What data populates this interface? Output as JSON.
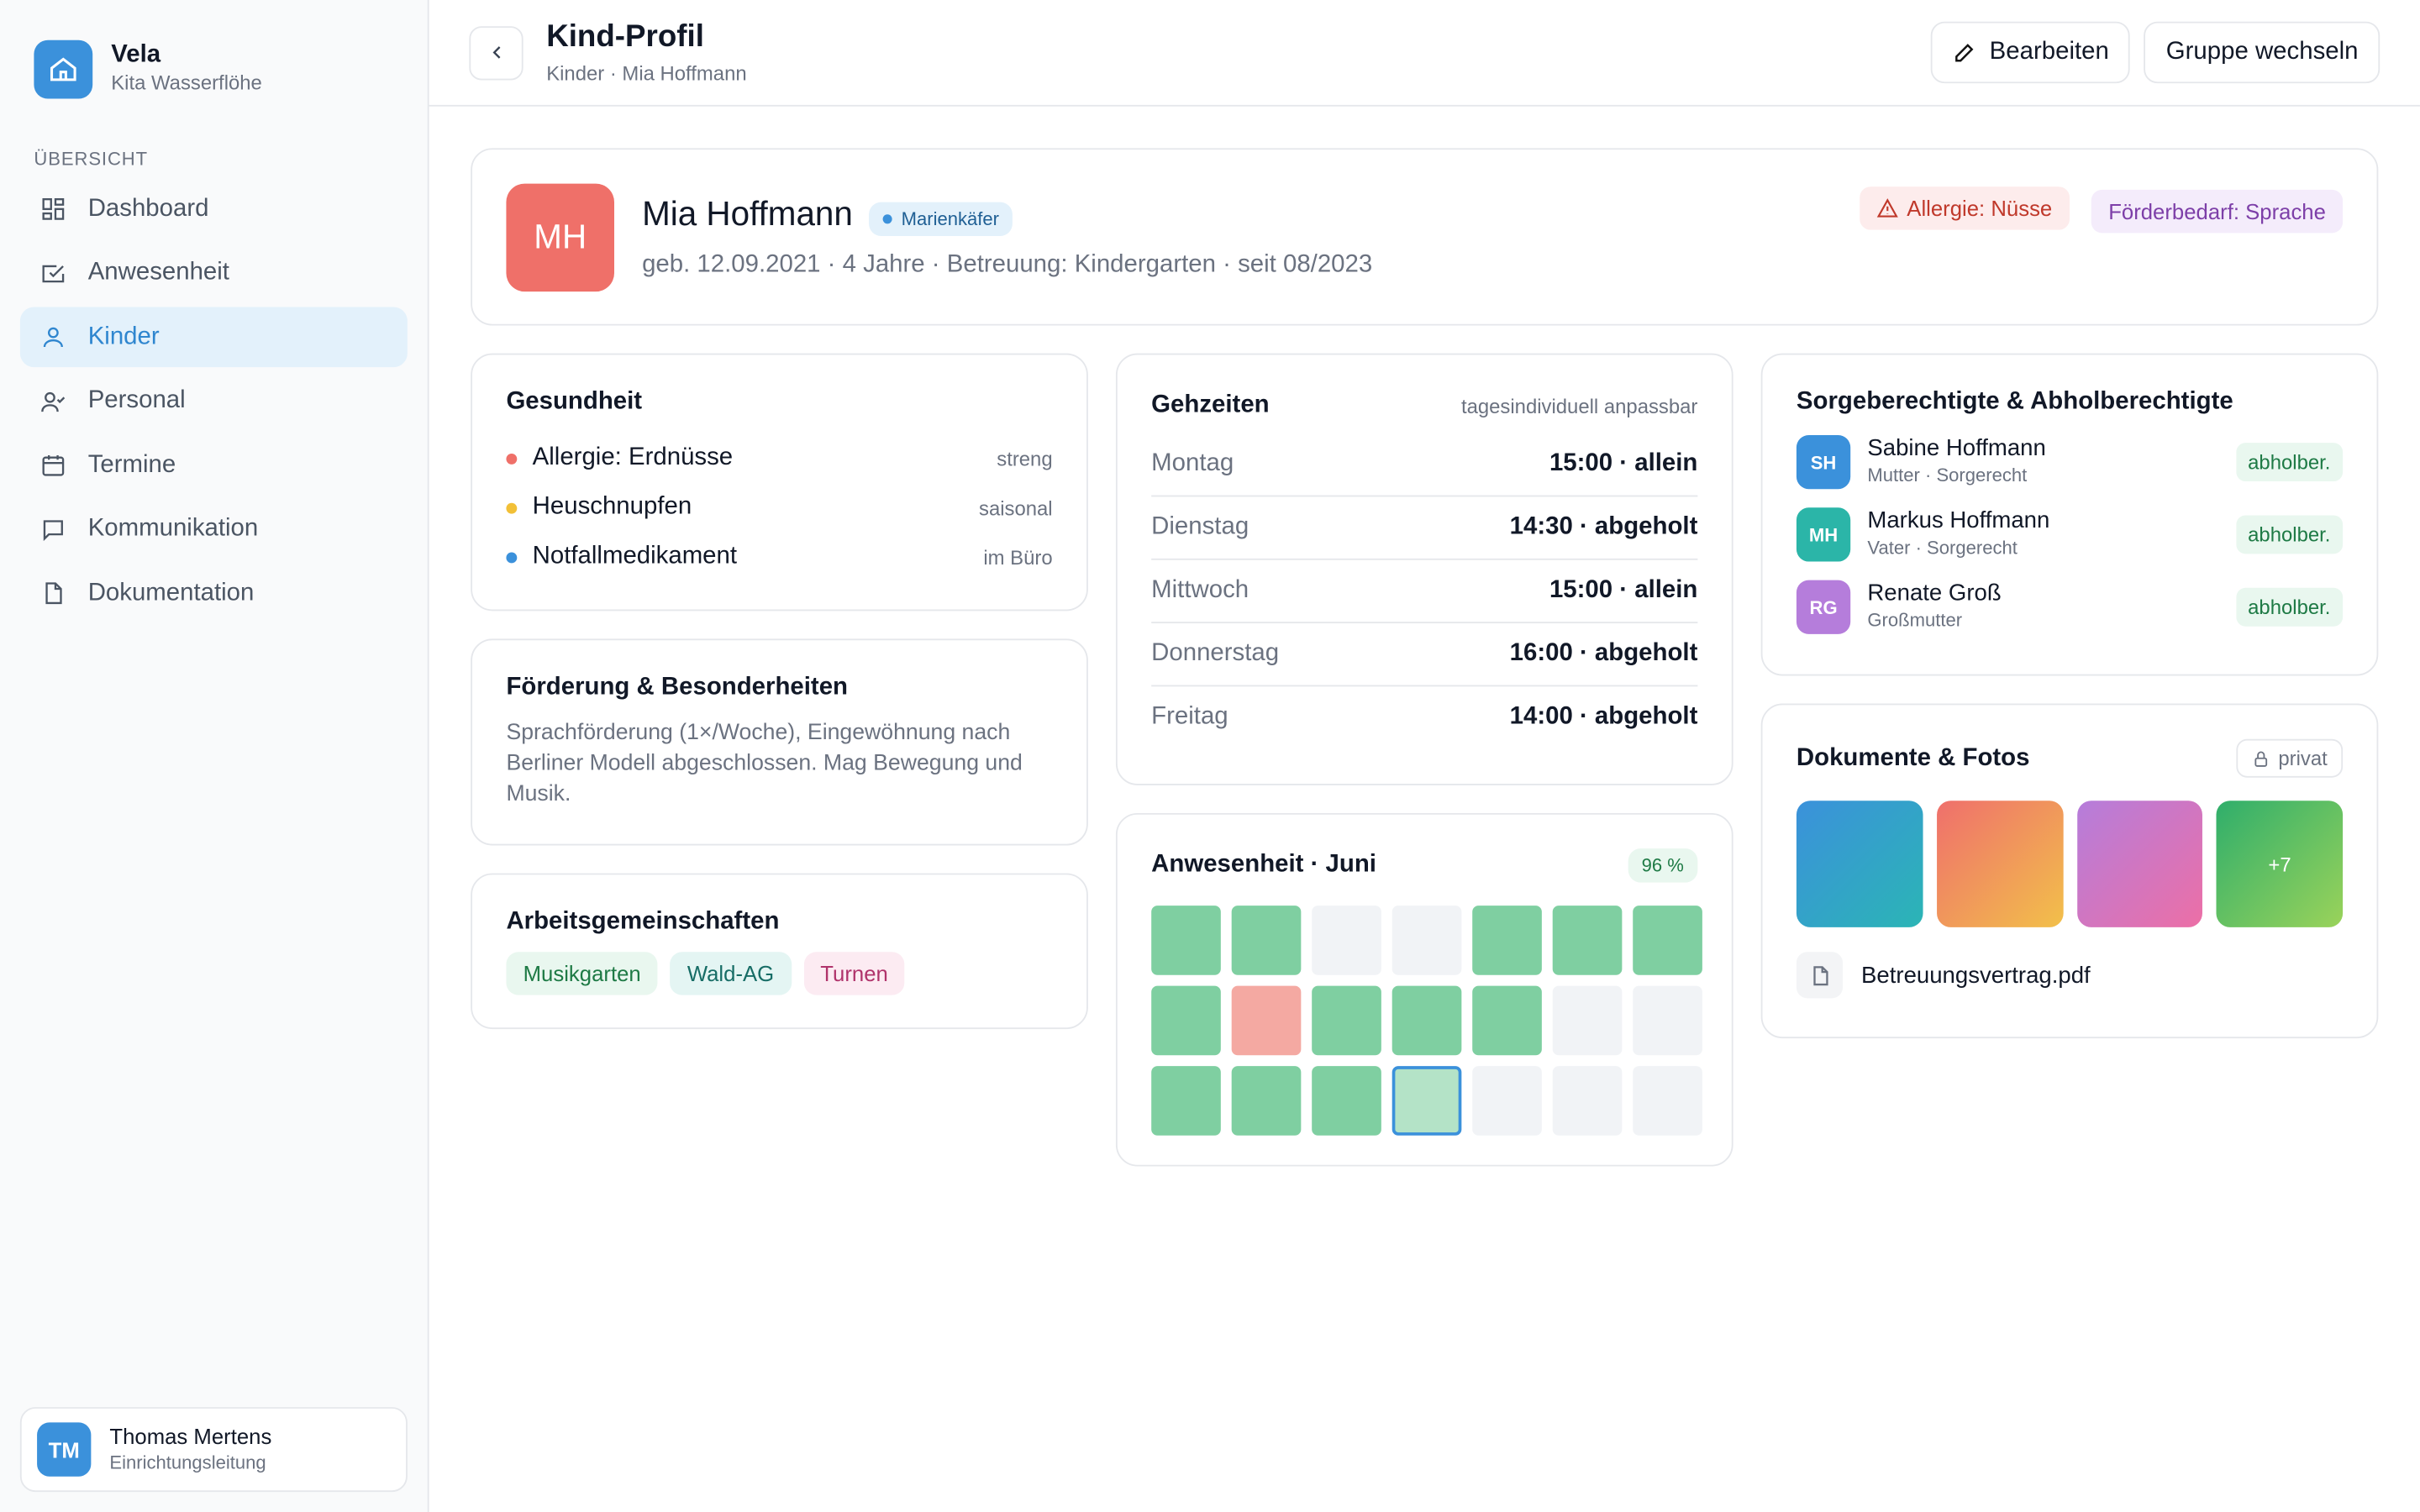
{
  "sidebar": {
    "brand": "Vela",
    "org": "Kita Wasserflöhe",
    "section": "ÜBERSICHT",
    "nav": [
      "Dashboard",
      "Anwesenheit",
      "Kinder",
      "Personal",
      "Termine",
      "Kommunikation",
      "Dokumentation"
    ],
    "user": {
      "initials": "TM",
      "name": "Thomas Mertens",
      "role": "Einrichtungsleitung"
    }
  },
  "header": {
    "title": "Kind-Profil",
    "breadcrumb": "Kinder · Mia Hoffmann",
    "actions": [
      "Bearbeiten",
      "Gruppe wechseln"
    ]
  },
  "profile": {
    "initials": "MH",
    "name": "Mia Hoffmann",
    "group": "Marienkäfer",
    "details": "geb. 12.09.2021 · 4 Jahre · Betreuung: Kindergarten · seit 08/2023",
    "tags": [
      "Allergie: Nüsse",
      "Förderbedarf: Sprache"
    ]
  },
  "health": {
    "title": "Gesundheit",
    "items": [
      {
        "label": "Allergie: Erdnüsse",
        "note": "streng"
      },
      {
        "label": "Heuschnupfen",
        "note": "saisonal"
      },
      {
        "label": "Notfallmedikament",
        "note": "im Büro"
      }
    ]
  },
  "support": {
    "title": "Förderung & Besonderheiten",
    "text": "Sprachförderung (1×/Woche), Eingewöhnung nach Berliner Modell abgeschlossen. Mag Bewegung und Musik."
  },
  "clubs": {
    "title": "Arbeitsgemeinschaften",
    "items": [
      "Musikgarten",
      "Wald-AG",
      "Turnen"
    ]
  },
  "times": {
    "title": "Gehzeiten",
    "note": "tagesindividuell anpassbar",
    "rows": [
      {
        "day": "Montag",
        "time": "15:00 · allein"
      },
      {
        "day": "Dienstag",
        "time": "14:30 · abgeholt"
      },
      {
        "day": "Mittwoch",
        "time": "15:00 · allein"
      },
      {
        "day": "Donnerstag",
        "time": "16:00 · abgeholt"
      },
      {
        "day": "Freitag",
        "time": "14:00 · abgeholt"
      }
    ]
  },
  "attendance": {
    "title": "Anwesenheit · Juni",
    "rate": "96 %"
  },
  "guardians": {
    "title": "Sorgeberechtigte & Abholberechtigte",
    "people": [
      {
        "initials": "SH",
        "name": "Sabine Hoffmann",
        "role": "Mutter · Sorgerecht",
        "badge": "abholber."
      },
      {
        "initials": "MH",
        "name": "Markus Hoffmann",
        "role": "Vater · Sorgerecht",
        "badge": "abholber."
      },
      {
        "initials": "RG",
        "name": "Renate Groß",
        "role": "Großmutter",
        "badge": "abholber."
      }
    ]
  },
  "documents": {
    "title": "Dokumente & Fotos",
    "privacy": "privat",
    "more": "+7",
    "file": "Betreuungsvertrag.pdf"
  }
}
